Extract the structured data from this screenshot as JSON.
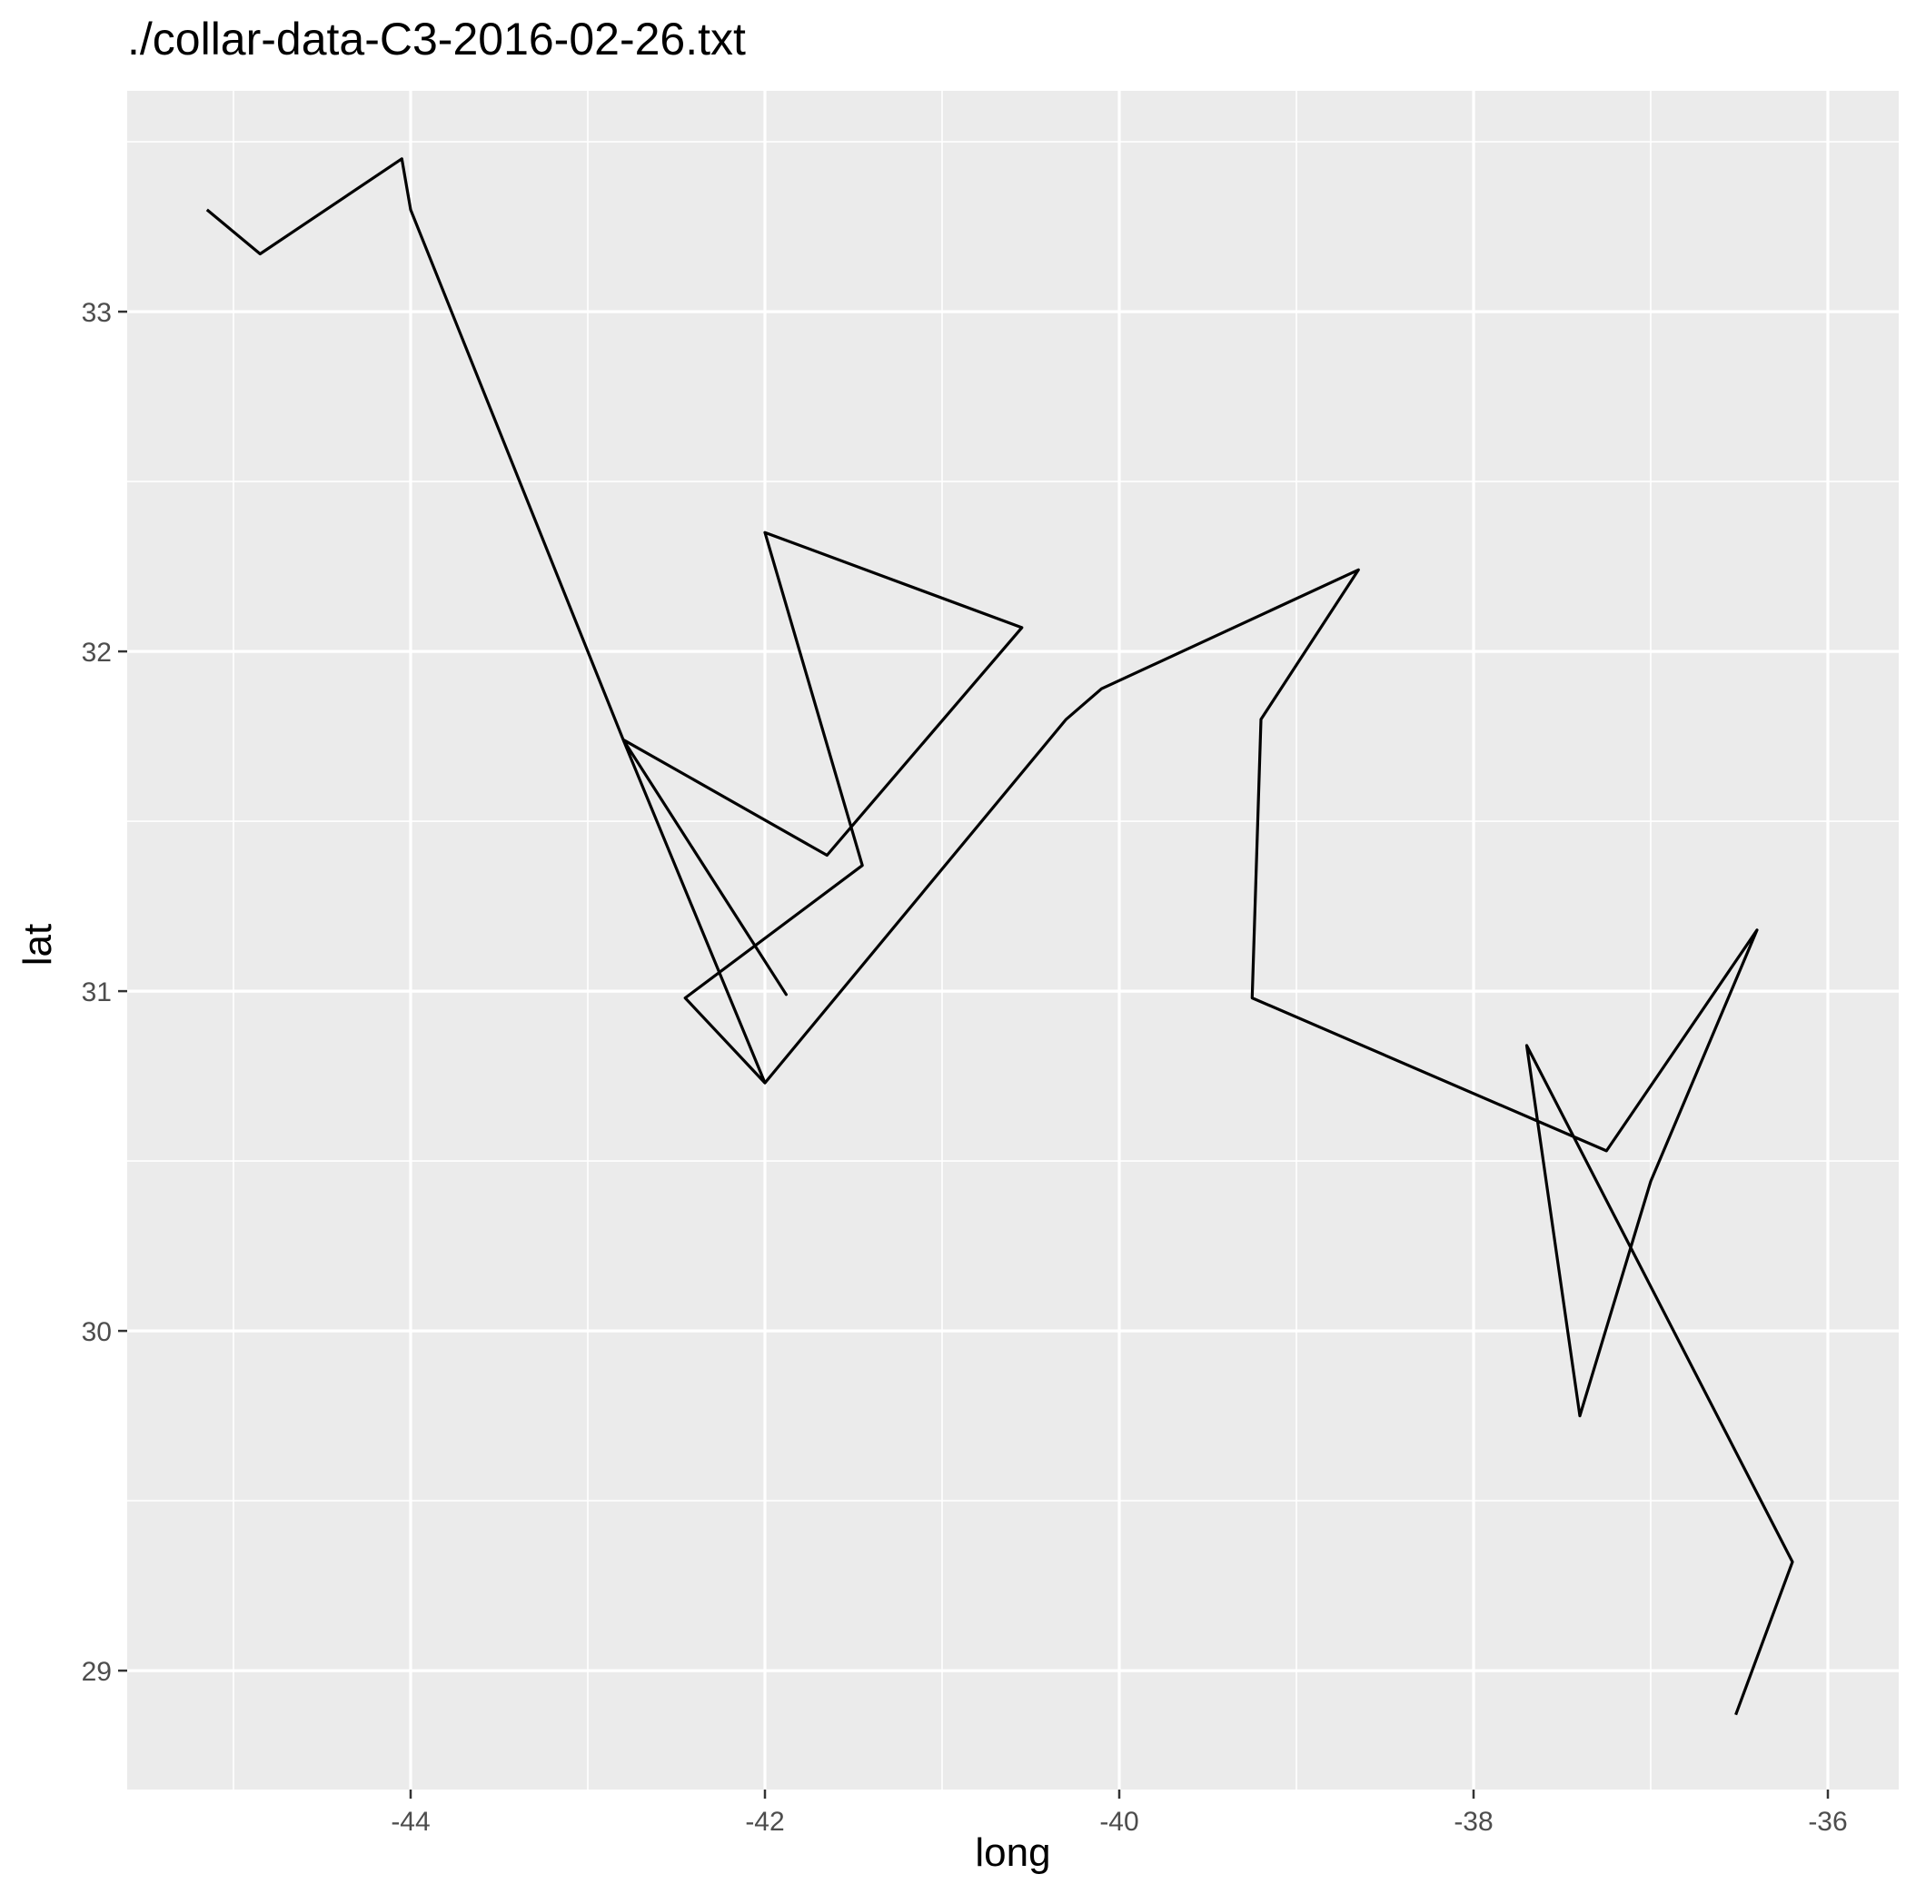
{
  "chart_data": {
    "type": "line",
    "title": "./collar-data-C3-2016-02-26.txt",
    "xlabel": "long",
    "ylabel": "lat",
    "xlim": [
      -45.6,
      -35.6
    ],
    "ylim": [
      28.65,
      33.65
    ],
    "x_ticks": [
      "-44",
      "-42",
      "-40",
      "-38",
      "-36"
    ],
    "y_ticks": [
      "29",
      "30",
      "31",
      "32",
      "33"
    ],
    "grid": true,
    "background": "#ebebeb",
    "grid_color": "#ffffff",
    "line_color": "#000000",
    "series": [
      {
        "x": [
          -45.15,
          -44.85,
          -44.05,
          -44.0,
          -42.8,
          -42.0,
          -42.45,
          -41.45,
          -42.0,
          -40.55,
          -41.65,
          -42.8,
          -41.88,
          -42.8,
          -42.0,
          -40.3,
          -40.1,
          -38.65,
          -39.2,
          -39.25,
          -37.25,
          -36.4,
          -37.0,
          -37.4,
          -37.7,
          -36.2,
          -36.52
        ],
        "y": [
          33.3,
          33.17,
          33.45,
          33.3,
          31.74,
          30.73,
          30.98,
          31.37,
          32.35,
          32.07,
          31.4,
          31.74,
          30.99,
          31.74,
          30.73,
          31.8,
          31.89,
          32.24,
          31.8,
          30.98,
          30.53,
          31.18,
          30.44,
          29.75,
          30.84,
          29.32,
          28.87
        ]
      }
    ]
  }
}
